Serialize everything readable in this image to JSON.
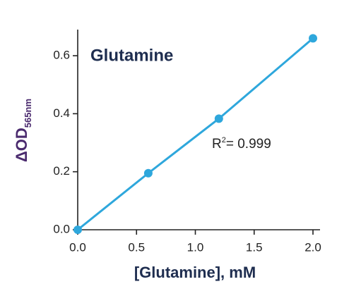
{
  "chart_data": {
    "type": "scatter",
    "title": "Glutamine",
    "x_label": "[Glutamine], mM",
    "y_label": "ΔOD",
    "y_label_subscript": "565nm",
    "annotation": {
      "text": "R",
      "superscript": "2",
      "rest": "= 0.999"
    },
    "x": [
      0,
      0.6,
      1.2,
      2.0
    ],
    "series": [
      {
        "color": "#2ea7dc",
        "values": [
          0,
          0.195,
          0.383,
          0.66
        ]
      }
    ],
    "xlim": [
      0,
      2.06
    ],
    "ylim": [
      0,
      0.69
    ],
    "xticks": [
      {
        "value": 0,
        "label": "0.0"
      },
      0.5,
      {
        "value": 1,
        "label": "1.0"
      },
      1.5,
      {
        "value": 2,
        "label": "2.0"
      }
    ],
    "yticks": [
      {
        "value": 0,
        "label": "0.0"
      },
      0.2,
      0.4,
      0.6
    ],
    "fit_line": true
  }
}
